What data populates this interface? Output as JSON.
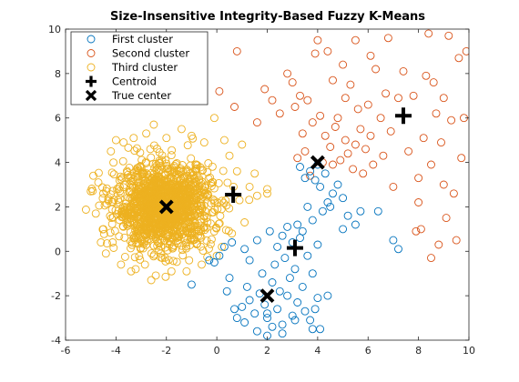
{
  "chart_data": {
    "type": "scatter",
    "title": "Size-Insensitive Integrity-Based Fuzzy K-Means",
    "xlabel": "",
    "ylabel": "",
    "xlim": [
      -6,
      10
    ],
    "ylim": [
      -4,
      10
    ],
    "xticks": [
      -6,
      -4,
      -2,
      0,
      2,
      4,
      6,
      8,
      10
    ],
    "yticks": [
      -4,
      -2,
      0,
      2,
      4,
      6,
      8,
      10
    ],
    "xtick_labels": [
      "-6",
      "-4",
      "-2",
      "0",
      "2",
      "4",
      "6",
      "8",
      "10"
    ],
    "ytick_labels": [
      "-4",
      "-2",
      "0",
      "2",
      "4",
      "6",
      "8",
      "10"
    ],
    "grid": false,
    "legend_position": "top-left",
    "series": [
      {
        "name": "First cluster",
        "marker": "circle-open",
        "color": "#0072BD",
        "points": [
          [
            -1,
            -1.5
          ],
          [
            -0.3,
            -0.4
          ],
          [
            -0.1,
            -0.5
          ],
          [
            0.1,
            -0.2
          ],
          [
            0.3,
            0.2
          ],
          [
            0.6,
            0.4
          ],
          [
            1.1,
            0.1
          ],
          [
            1.2,
            -1.6
          ],
          [
            1.3,
            -2.2
          ],
          [
            1.5,
            -2.8
          ],
          [
            1.6,
            -3.6
          ],
          [
            1.8,
            -1.0
          ],
          [
            1.9,
            -2.4
          ],
          [
            2.0,
            -3.0
          ],
          [
            2.1,
            0.9
          ],
          [
            2.2,
            -1.4
          ],
          [
            2.3,
            -0.6
          ],
          [
            2.4,
            -2.6
          ],
          [
            2.5,
            -1.8
          ],
          [
            2.6,
            -3.3
          ],
          [
            2.7,
            -0.3
          ],
          [
            2.8,
            -2.0
          ],
          [
            2.9,
            -1.2
          ],
          [
            3.0,
            -2.9
          ],
          [
            3.1,
            -0.8
          ],
          [
            3.2,
            -2.3
          ],
          [
            3.3,
            0.6
          ],
          [
            3.4,
            -1.6
          ],
          [
            3.5,
            -2.7
          ],
          [
            3.6,
            -0.2
          ],
          [
            3.7,
            -3.1
          ],
          [
            3.8,
            -1.0
          ],
          [
            4.0,
            -2.1
          ],
          [
            4.1,
            -3.5
          ],
          [
            4.4,
            -2.0
          ],
          [
            0.8,
            -3.0
          ],
          [
            1.0,
            -2.5
          ],
          [
            1.3,
            -0.4
          ],
          [
            1.6,
            0.5
          ],
          [
            2.0,
            -3.8
          ],
          [
            2.4,
            0.2
          ],
          [
            2.6,
            0.7
          ],
          [
            2.8,
            1.1
          ],
          [
            3.0,
            0.4
          ],
          [
            3.2,
            1.2
          ],
          [
            3.4,
            0.9
          ],
          [
            3.6,
            2.0
          ],
          [
            3.8,
            1.4
          ],
          [
            4.0,
            0.3
          ],
          [
            4.2,
            1.8
          ],
          [
            4.4,
            2.2
          ],
          [
            3.5,
            3.3
          ],
          [
            3.7,
            3.6
          ],
          [
            3.9,
            3.2
          ],
          [
            4.1,
            2.9
          ],
          [
            4.3,
            3.5
          ],
          [
            4.6,
            2.6
          ],
          [
            4.8,
            3.0
          ],
          [
            5.0,
            2.4
          ],
          [
            5.2,
            1.6
          ],
          [
            5.5,
            1.2
          ],
          [
            5.7,
            1.8
          ],
          [
            3.3,
            3.8
          ],
          [
            4.0,
            3.9
          ],
          [
            4.5,
            2.0
          ],
          [
            5.0,
            1.0
          ],
          [
            6.4,
            1.8
          ],
          [
            7.0,
            0.5
          ],
          [
            7.2,
            0.1
          ],
          [
            2.6,
            -3.7
          ],
          [
            1.1,
            -3.2
          ],
          [
            3.8,
            -3.5
          ],
          [
            0.4,
            -1.8
          ],
          [
            0.7,
            -2.6
          ],
          [
            2.2,
            -3.4
          ],
          [
            3.1,
            -3.1
          ],
          [
            1.7,
            -1.9
          ],
          [
            3.9,
            -2.6
          ],
          [
            2.0,
            -2.8
          ],
          [
            0.5,
            -1.2
          ]
        ]
      },
      {
        "name": "Second cluster",
        "marker": "circle-open",
        "color": "#D95319",
        "points": [
          [
            0.1,
            7.2
          ],
          [
            0.7,
            6.5
          ],
          [
            0.8,
            9.0
          ],
          [
            1.6,
            5.8
          ],
          [
            1.9,
            7.3
          ],
          [
            2.5,
            6.2
          ],
          [
            2.8,
            8.0
          ],
          [
            3.1,
            6.5
          ],
          [
            3.2,
            4.2
          ],
          [
            3.3,
            7.0
          ],
          [
            3.4,
            5.3
          ],
          [
            3.5,
            4.5
          ],
          [
            3.6,
            6.8
          ],
          [
            3.7,
            3.4
          ],
          [
            3.8,
            5.8
          ],
          [
            3.9,
            8.9
          ],
          [
            4.0,
            9.5
          ],
          [
            4.1,
            6.1
          ],
          [
            4.2,
            4.0
          ],
          [
            4.3,
            5.2
          ],
          [
            4.4,
            9.0
          ],
          [
            4.5,
            4.7
          ],
          [
            4.6,
            3.9
          ],
          [
            4.7,
            5.6
          ],
          [
            4.8,
            6.0
          ],
          [
            4.9,
            4.1
          ],
          [
            5.0,
            8.4
          ],
          [
            5.1,
            5.0
          ],
          [
            5.2,
            4.4
          ],
          [
            5.3,
            7.5
          ],
          [
            5.4,
            3.7
          ],
          [
            5.5,
            4.8
          ],
          [
            5.6,
            6.4
          ],
          [
            5.7,
            5.5
          ],
          [
            5.8,
            3.5
          ],
          [
            5.9,
            4.6
          ],
          [
            6.0,
            6.6
          ],
          [
            6.1,
            5.2
          ],
          [
            6.2,
            3.9
          ],
          [
            6.3,
            8.2
          ],
          [
            6.5,
            6.0
          ],
          [
            6.6,
            4.3
          ],
          [
            6.7,
            7.1
          ],
          [
            6.8,
            9.6
          ],
          [
            6.9,
            5.4
          ],
          [
            7.0,
            2.9
          ],
          [
            7.2,
            6.9
          ],
          [
            7.4,
            8.1
          ],
          [
            7.6,
            4.5
          ],
          [
            7.8,
            7.0
          ],
          [
            8.0,
            3.3
          ],
          [
            8.1,
            1.0
          ],
          [
            8.2,
            5.1
          ],
          [
            8.3,
            7.9
          ],
          [
            8.4,
            9.8
          ],
          [
            8.5,
            3.9
          ],
          [
            8.6,
            7.6
          ],
          [
            8.7,
            6.2
          ],
          [
            8.8,
            0.3
          ],
          [
            8.9,
            4.9
          ],
          [
            9.0,
            6.9
          ],
          [
            9.1,
            1.5
          ],
          [
            9.2,
            9.7
          ],
          [
            9.3,
            5.9
          ],
          [
            9.4,
            2.6
          ],
          [
            9.5,
            0.5
          ],
          [
            9.6,
            8.7
          ],
          [
            9.7,
            4.2
          ],
          [
            9.8,
            6.0
          ],
          [
            9.9,
            9.0
          ],
          [
            7.9,
            0.9
          ],
          [
            8.5,
            -0.3
          ],
          [
            8.0,
            2.2
          ],
          [
            9.0,
            3.0
          ],
          [
            5.5,
            9.5
          ],
          [
            6.1,
            8.8
          ],
          [
            4.6,
            7.7
          ],
          [
            3.0,
            7.6
          ],
          [
            2.2,
            6.8
          ],
          [
            5.1,
            6.9
          ]
        ]
      },
      {
        "name": "Third cluster",
        "marker": "circle-open",
        "color": "#EDB120",
        "generator": {
          "center": [
            -2.1,
            2.0
          ],
          "spread": 0.95,
          "count": 1400,
          "extra_points": [
            [
              -5.0,
              2.7
            ],
            [
              -4.9,
              3.4
            ],
            [
              -4.8,
              1.7
            ],
            [
              -4.7,
              3.1
            ],
            [
              -4.6,
              0.4
            ],
            [
              -4.5,
              1.0
            ],
            [
              -4.4,
              -0.1
            ],
            [
              -3.7,
              4.9
            ],
            [
              -3.3,
              5.1
            ],
            [
              -2.8,
              5.3
            ],
            [
              -2.5,
              5.7
            ],
            [
              -2.0,
              5.1
            ],
            [
              -1.4,
              5.5
            ],
            [
              -1.0,
              5.2
            ],
            [
              -0.5,
              4.9
            ],
            [
              -0.1,
              6.0
            ],
            [
              0.3,
              5.0
            ],
            [
              0.5,
              4.3
            ],
            [
              0.8,
              3.6
            ],
            [
              0.9,
              2.3
            ],
            [
              1.1,
              1.3
            ],
            [
              1.3,
              2.9
            ],
            [
              1.5,
              3.5
            ],
            [
              1.6,
              2.5
            ],
            [
              2.0,
              2.8
            ],
            [
              2.0,
              2.6
            ],
            [
              -3.8,
              -0.6
            ],
            [
              -3.4,
              -0.9
            ],
            [
              -2.6,
              -1.3
            ],
            [
              -1.8,
              -0.9
            ],
            [
              -1.2,
              -0.9
            ],
            [
              -0.6,
              -0.6
            ],
            [
              0.0,
              -0.2
            ],
            [
              -4.2,
              4.5
            ],
            [
              -4.0,
              5.0
            ],
            [
              1.0,
              4.8
            ],
            [
              0.2,
              0.2
            ],
            [
              0.6,
              0.8
            ]
          ]
        }
      }
    ],
    "centroids": {
      "name": "Centroid",
      "marker": "plus",
      "color": "#000000",
      "points": [
        [
          0.65,
          2.55
        ],
        [
          3.1,
          0.15
        ],
        [
          7.4,
          6.1
        ]
      ]
    },
    "true_centers": {
      "name": "True center",
      "marker": "x",
      "color": "#000000",
      "points": [
        [
          -2.0,
          2.0
        ],
        [
          2.0,
          -2.0
        ],
        [
          4.0,
          4.0
        ]
      ]
    }
  }
}
